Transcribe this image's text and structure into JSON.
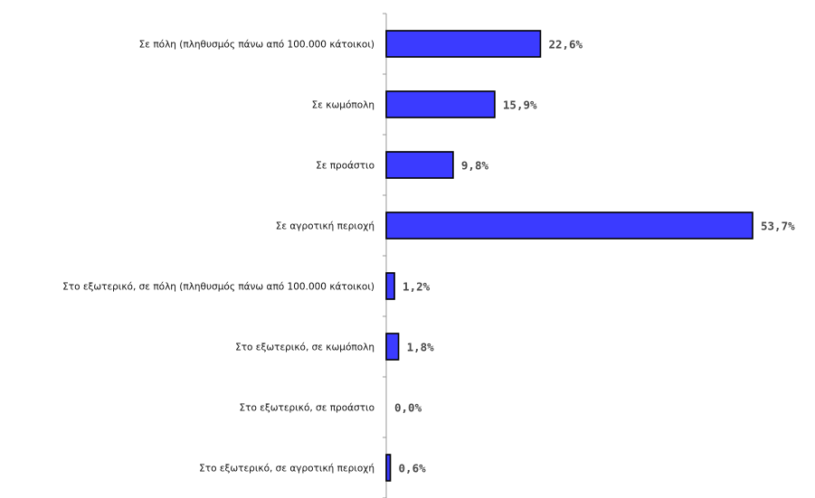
{
  "chart_data": {
    "type": "bar",
    "orientation": "horizontal",
    "categories": [
      "Σε πόλη (πληθυσμός πάνω από 100.000 κάτοικοι)",
      "Σε κωμόπολη",
      "Σε προάστιο",
      "Σε αγροτική περιοχή",
      "Στο εξωτερικό, σε πόλη (πληθυσμός πάνω από 100.000 κάτοικοι)",
      "Στο εξωτερικό, σε κωμόπολη",
      "Στο εξωτερικό, σε προάστιο",
      "Στο εξωτερικό, σε αγροτική περιοχή"
    ],
    "values": [
      22.6,
      15.9,
      9.8,
      53.7,
      1.2,
      1.8,
      0.0,
      0.6
    ],
    "value_labels": [
      "22,6%",
      "15,9%",
      "9,8%",
      "53,7%",
      "1,2%",
      "1,8%",
      "0,0%",
      "0,6%"
    ],
    "xlim": [
      0,
      53.7
    ],
    "grid": false,
    "legend": "none",
    "colors": {
      "bar_fill": "#3b3bff",
      "bar_stroke": "#000000",
      "axis": "#9a9a9a",
      "value_text": "#4a4a4a"
    }
  }
}
